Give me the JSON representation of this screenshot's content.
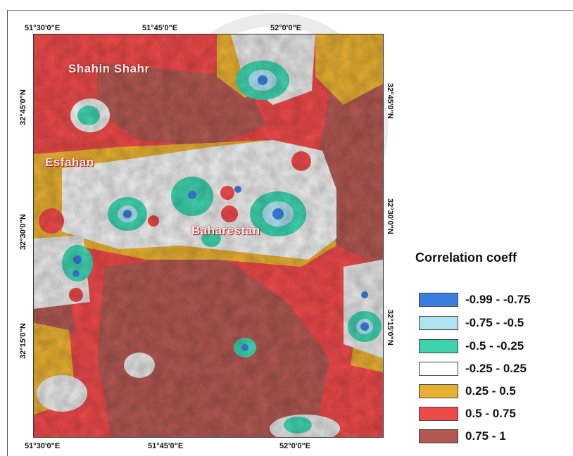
{
  "legend": {
    "title": "Correlation coeff",
    "items": [
      {
        "label": "-0.99 - -0.75",
        "color": "#3b7de0"
      },
      {
        "label": "-0.75 - -0.5",
        "color": "#aee3f0"
      },
      {
        "label": "-0.5 - -0.25",
        "color": "#3fd2ae"
      },
      {
        "label": "-0.25 - 0.25",
        "color": "#ffffff"
      },
      {
        "label": "0.25 - 0.5",
        "color": "#e8b032"
      },
      {
        "label": "0.5 - 0.75",
        "color": "#ee4a4a"
      },
      {
        "label": "0.75 - 1",
        "color": "#b25852"
      }
    ]
  },
  "coordinates": {
    "top": [
      "51°30'0\"E",
      "51°45'0\"E",
      "52°0'0\"E"
    ],
    "bottom": [
      "51°30'0\"E",
      "51°45'0\"E",
      "52°0'0\"E"
    ],
    "left": [
      "32°45'0\"N",
      "32°30'0\"N",
      "32°15'0\"N"
    ],
    "right": [
      "32°45'0\"N",
      "32°30'0\"N",
      "32°15'0\"N"
    ]
  },
  "cities": {
    "shahin_shahr": "Shahin Shahr",
    "esfahan": "Esfahan",
    "baharestan": "Baharestan"
  }
}
